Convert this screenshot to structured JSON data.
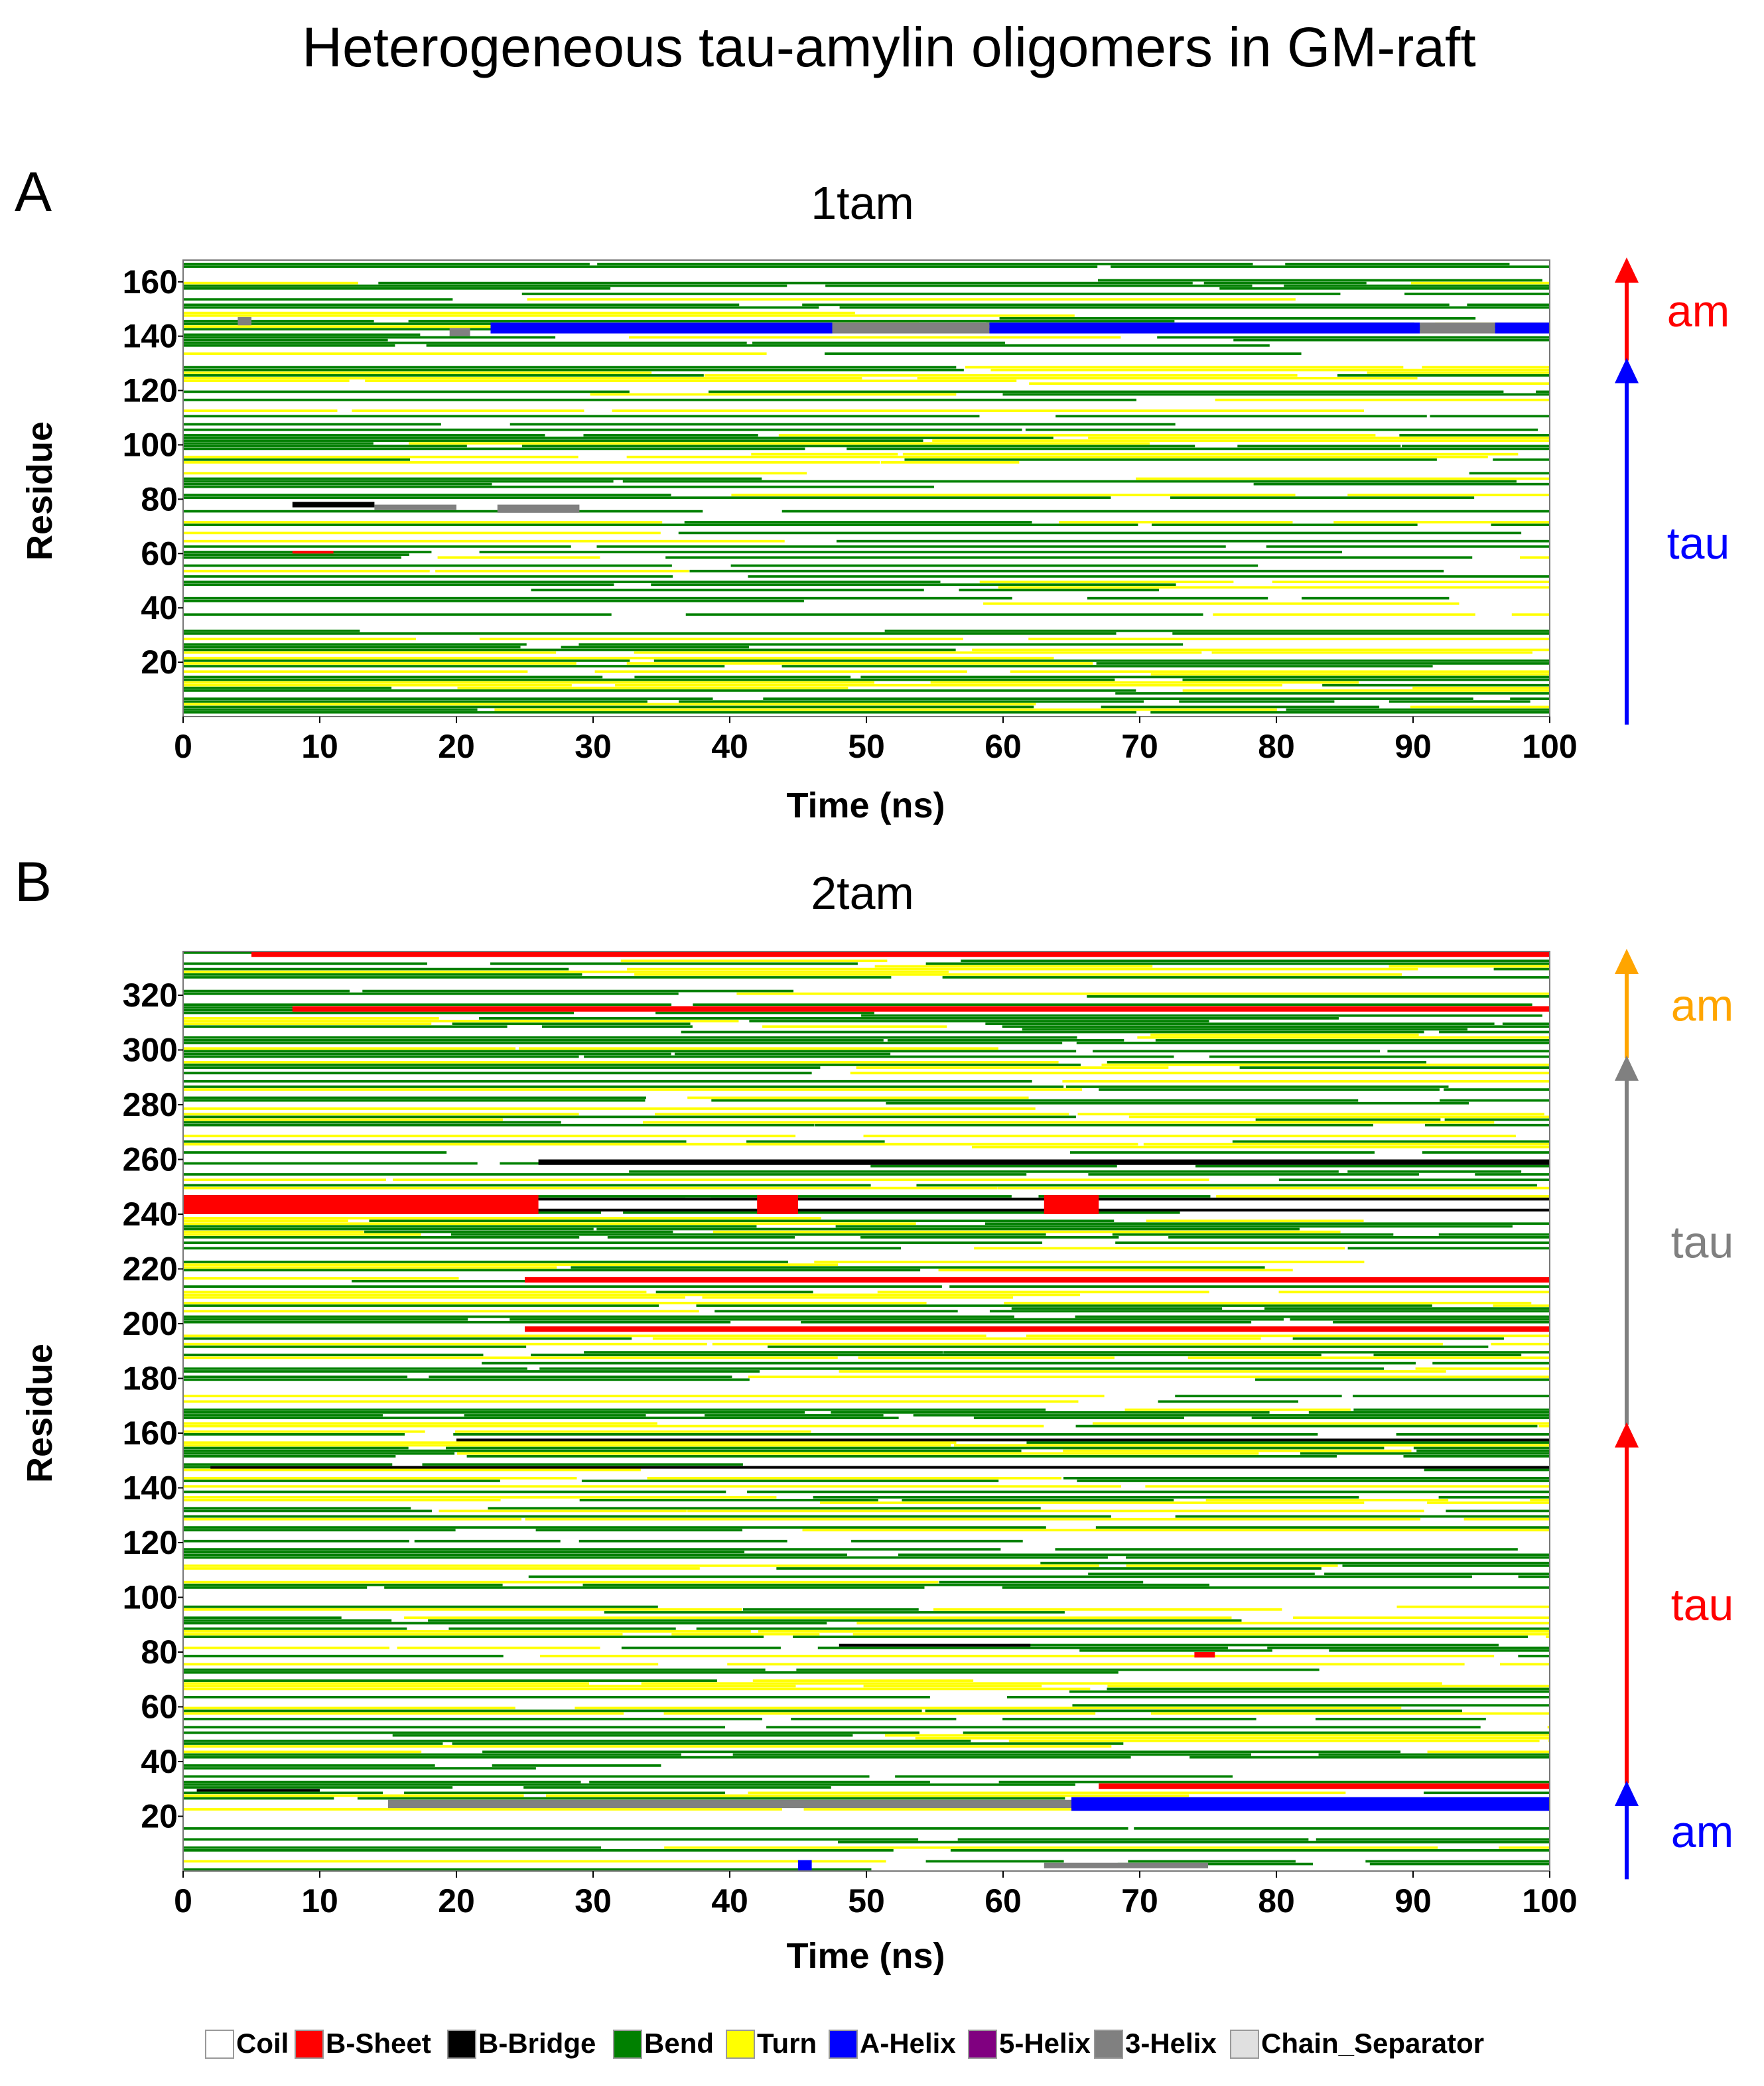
{
  "title": "Heterogeneous tau-amylin oligomers in GM-raft",
  "colors": {
    "Coil": "#ffffff",
    "B-Sheet": "#ff0000",
    "B-Bridge": "#000000",
    "Bend": "#008000",
    "Turn": "#ffff00",
    "A-Helix": "#0000ff",
    "5-Helix": "#800080",
    "3-Helix": "#808080",
    "Chain_Separator": "#e0e0e0"
  },
  "legend": [
    "Coil",
    "B-Sheet",
    "B-Bridge",
    "Bend",
    "Turn",
    "A-Helix",
    "5-Helix",
    "3-Helix",
    "Chain_Separator"
  ],
  "chart_data": [
    {
      "type": "heatmap",
      "panel_label": "A",
      "title": "1tam",
      "xlabel": "Time (ns)",
      "ylabel": "Residue",
      "xlim": [
        0,
        100
      ],
      "ylim": [
        0,
        168
      ],
      "xticks": [
        "0",
        "10",
        "20",
        "30",
        "40",
        "50",
        "60",
        "70",
        "80",
        "90",
        "100"
      ],
      "yticks": [
        "20",
        "40",
        "60",
        "80",
        "100",
        "120",
        "140",
        "160"
      ],
      "segments": [
        {
          "label": "am",
          "from": 131,
          "to": 168,
          "color": "#ff0000"
        },
        {
          "label": "tau",
          "from": -3,
          "to": 131,
          "color": "#0000ff"
        }
      ],
      "features": [
        {
          "state": "A-Helix",
          "t0": 22.5,
          "t1": 47.5,
          "r0": 141,
          "r1": 145
        },
        {
          "state": "3-Helix",
          "t0": 47.5,
          "t1": 59,
          "r0": 141,
          "r1": 145
        },
        {
          "state": "A-Helix",
          "t0": 59,
          "t1": 90.5,
          "r0": 141,
          "r1": 145
        },
        {
          "state": "3-Helix",
          "t0": 90.5,
          "t1": 96,
          "r0": 141,
          "r1": 145
        },
        {
          "state": "A-Helix",
          "t0": 96,
          "t1": 100,
          "r0": 141,
          "r1": 145
        },
        {
          "state": "3-Helix",
          "t0": 4,
          "t1": 5,
          "r0": 144,
          "r1": 147
        },
        {
          "state": "3-Helix",
          "t0": 19.5,
          "t1": 21,
          "r0": 140,
          "r1": 143
        },
        {
          "state": "B-Bridge",
          "t0": 8,
          "t1": 14,
          "r0": 77,
          "r1": 79
        },
        {
          "state": "3-Helix",
          "t0": 14,
          "t1": 20,
          "r0": 76,
          "r1": 78
        },
        {
          "state": "3-Helix",
          "t0": 23,
          "t1": 29,
          "r0": 75,
          "r1": 78
        },
        {
          "state": "B-Sheet",
          "t0": 8,
          "t1": 11,
          "r0": 60,
          "r1": 61
        }
      ]
    },
    {
      "type": "heatmap",
      "panel_label": "B",
      "title": "2tam",
      "xlabel": "Time (ns)",
      "ylabel": "Residue",
      "xlim": [
        0,
        100
      ],
      "ylim": [
        0,
        336
      ],
      "xticks": [
        "0",
        "10",
        "20",
        "30",
        "40",
        "50",
        "60",
        "70",
        "80",
        "90",
        "100"
      ],
      "yticks": [
        "20",
        "40",
        "60",
        "80",
        "100",
        "120",
        "140",
        "160",
        "180",
        "200",
        "220",
        "240",
        "260",
        "280",
        "300",
        "320"
      ],
      "segments": [
        {
          "label": "am",
          "from": 297,
          "to": 336,
          "color": "#ffa500"
        },
        {
          "label": "tau",
          "from": 163,
          "to": 297,
          "color": "#808080"
        },
        {
          "label": "tau",
          "from": 32,
          "to": 163,
          "color": "#ff0000"
        },
        {
          "label": "am",
          "from": -3,
          "to": 32,
          "color": "#0000ff"
        }
      ],
      "features": [
        {
          "state": "B-Sheet",
          "t0": 5,
          "t1": 100,
          "r0": 334,
          "r1": 336
        },
        {
          "state": "B-Sheet",
          "t0": 8,
          "t1": 100,
          "r0": 314,
          "r1": 316
        },
        {
          "state": "B-Sheet",
          "t0": 0,
          "t1": 26,
          "r0": 240,
          "r1": 247
        },
        {
          "state": "B-Bridge",
          "t0": 26,
          "t1": 100,
          "r0": 245,
          "r1": 246
        },
        {
          "state": "B-Bridge",
          "t0": 26,
          "t1": 100,
          "r0": 241,
          "r1": 242
        },
        {
          "state": "B-Sheet",
          "t0": 42,
          "t1": 45,
          "r0": 240,
          "r1": 247
        },
        {
          "state": "B-Sheet",
          "t0": 63,
          "t1": 67,
          "r0": 240,
          "r1": 247
        },
        {
          "state": "B-Bridge",
          "t0": 26,
          "t1": 100,
          "r0": 258,
          "r1": 260
        },
        {
          "state": "B-Sheet",
          "t0": 25,
          "t1": 100,
          "r0": 215,
          "r1": 217
        },
        {
          "state": "B-Sheet",
          "t0": 25,
          "t1": 100,
          "r0": 197,
          "r1": 199
        },
        {
          "state": "B-Bridge",
          "t0": 20,
          "t1": 100,
          "r0": 157,
          "r1": 158
        },
        {
          "state": "B-Bridge",
          "t0": 2,
          "t1": 100,
          "r0": 147,
          "r1": 148
        },
        {
          "state": "B-Bridge",
          "t0": 48,
          "t1": 62,
          "r0": 82,
          "r1": 83
        },
        {
          "state": "B-Sheet",
          "t0": 74,
          "t1": 75.5,
          "r0": 78,
          "r1": 80
        },
        {
          "state": "B-Bridge",
          "t0": 1,
          "t1": 10,
          "r0": 29,
          "r1": 30
        },
        {
          "state": "A-Helix",
          "t0": 65,
          "t1": 100,
          "r0": 22,
          "r1": 27
        },
        {
          "state": "3-Helix",
          "t0": 15,
          "t1": 65,
          "r0": 23,
          "r1": 26
        },
        {
          "state": "3-Helix",
          "t0": 63,
          "t1": 75,
          "r0": 1,
          "r1": 3
        },
        {
          "state": "A-Helix",
          "t0": 45,
          "t1": 46,
          "r0": 0,
          "r1": 4
        },
        {
          "state": "B-Sheet",
          "t0": 67,
          "t1": 100,
          "r0": 30,
          "r1": 32
        }
      ]
    }
  ]
}
